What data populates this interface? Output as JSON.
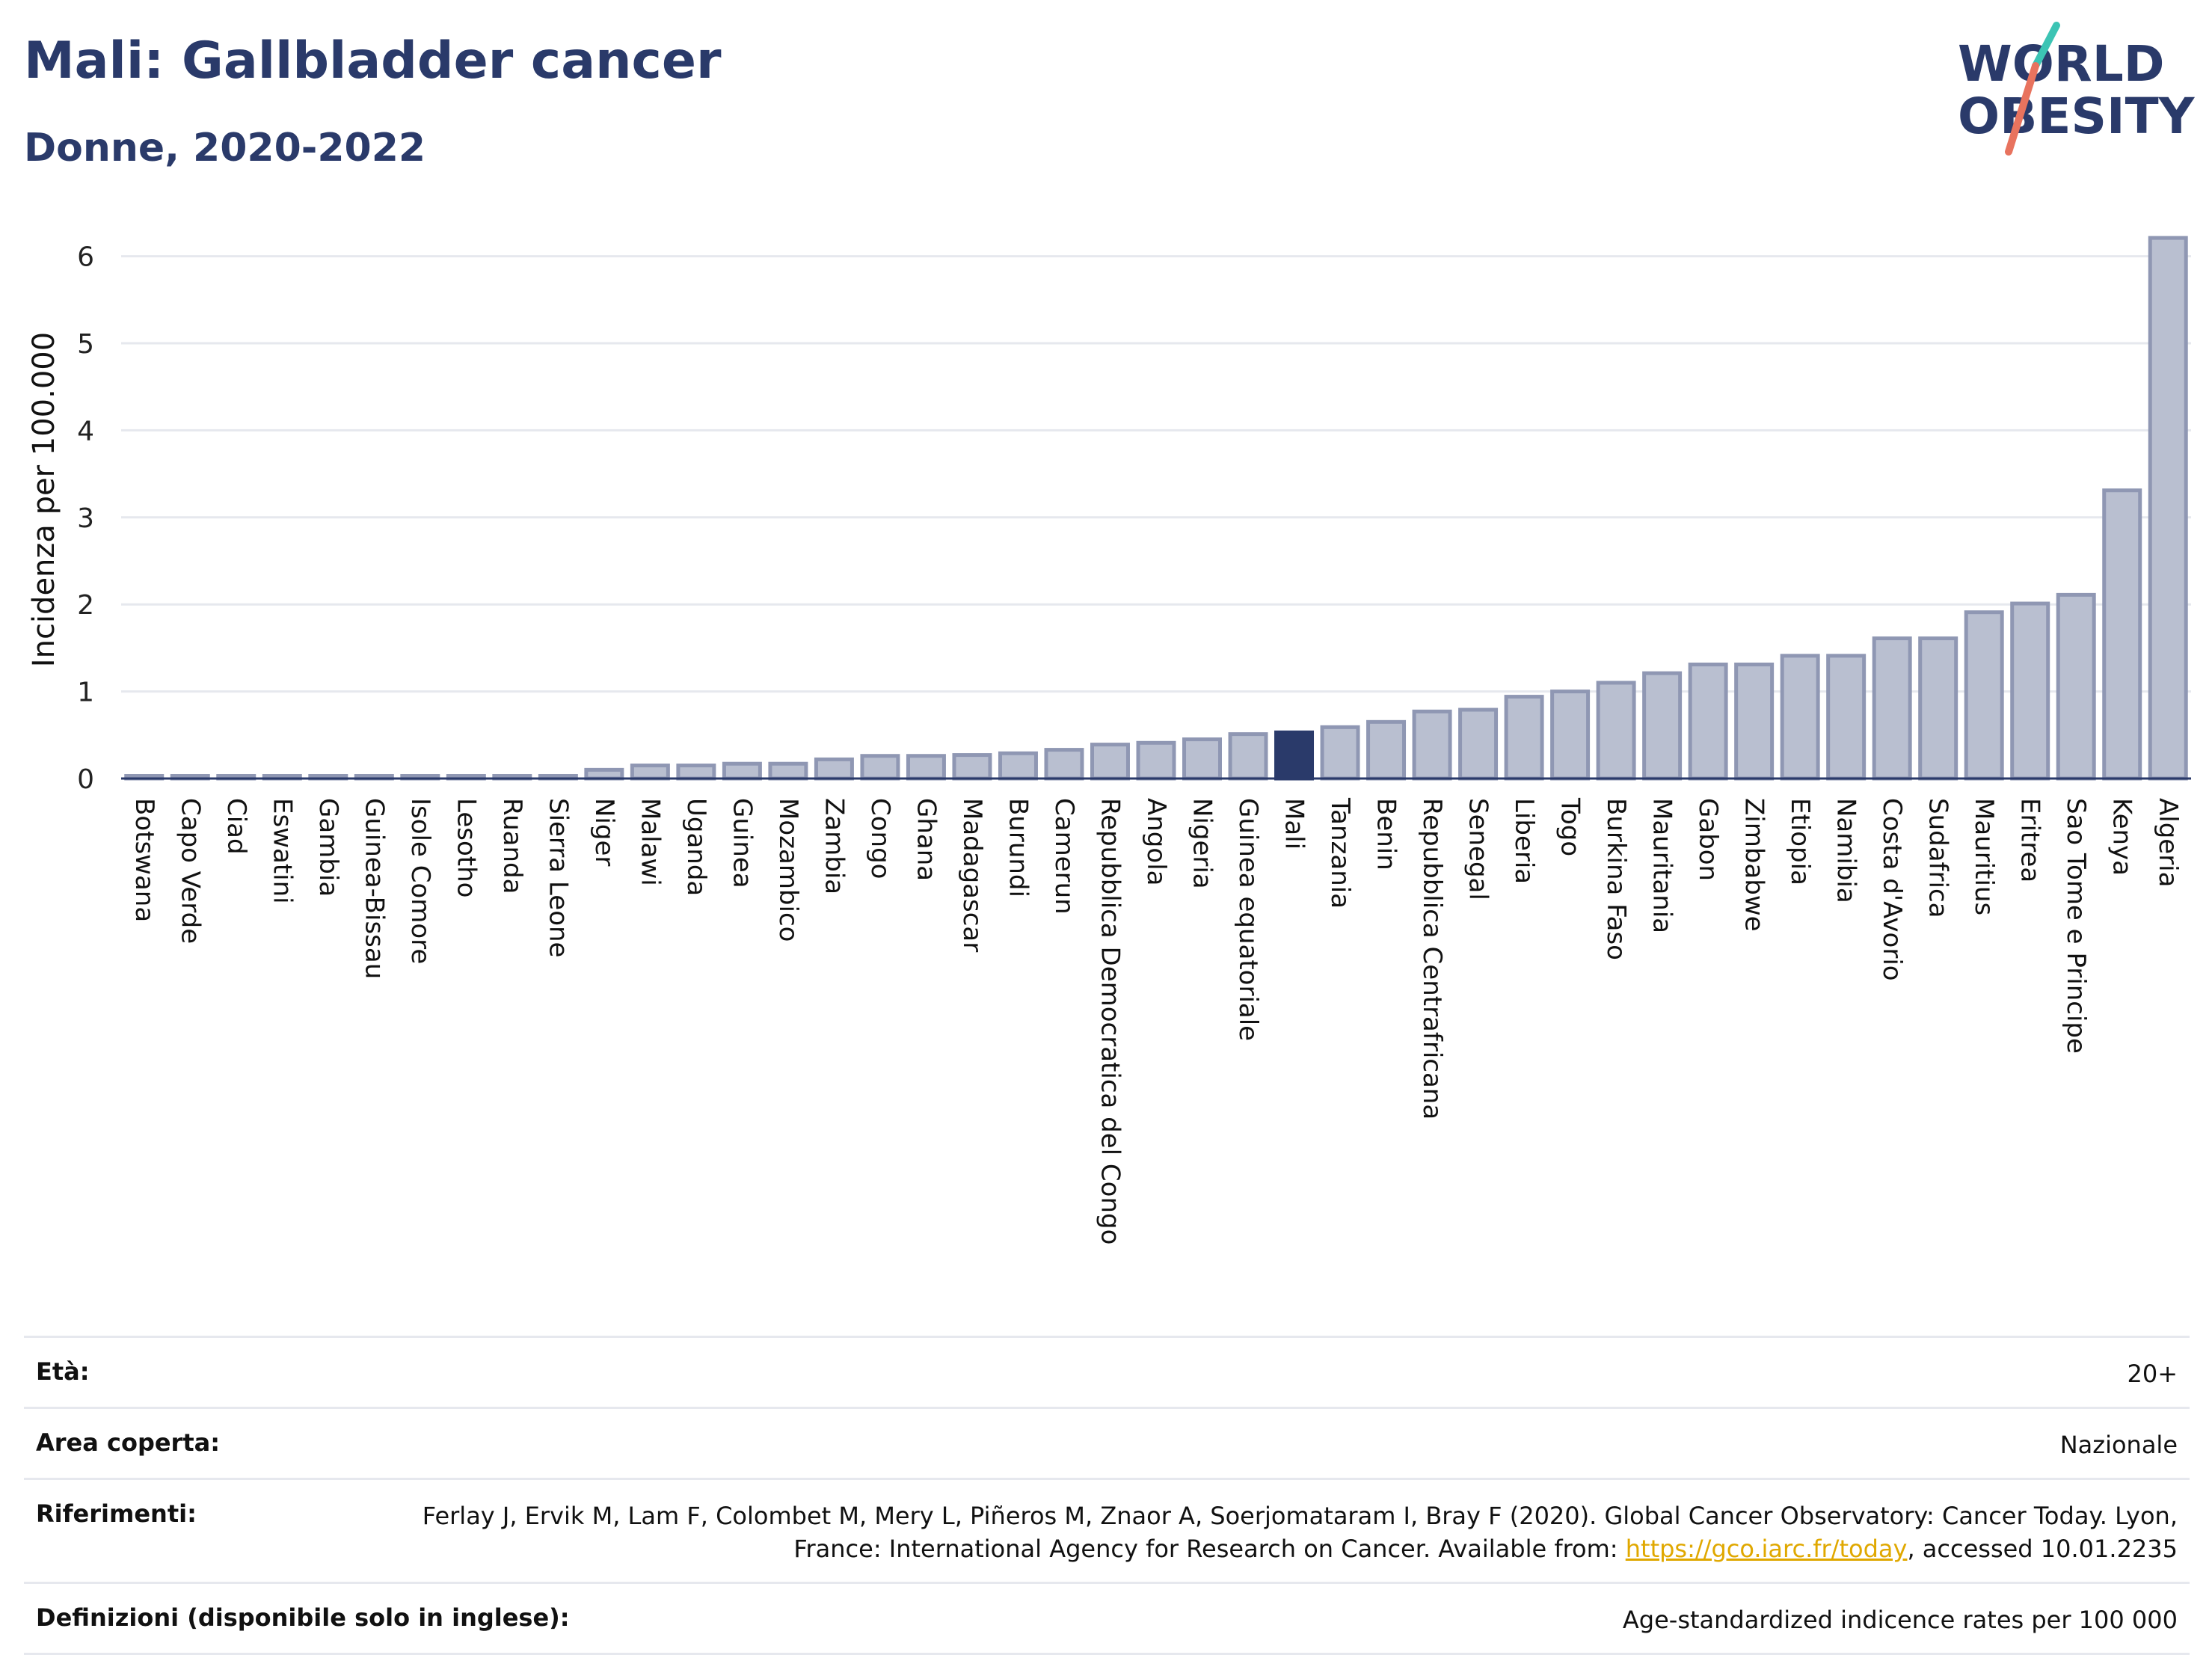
{
  "header": {
    "title": "Mali: Gallbladder cancer",
    "subtitle": "Donne, 2020-2022",
    "logo_line1": "WORLD",
    "logo_line2": "OBESITY"
  },
  "colors": {
    "bar": "#b9bfd0",
    "bar_border": "#8f97b3",
    "highlight": "#2a3a6a",
    "grid": "#e6e8ee",
    "logo_text": "#2a3a6a",
    "logo_accent_1": "#3cc4b4",
    "logo_accent_2": "#e8735e"
  },
  "chart_data": {
    "type": "bar",
    "title": "Mali: Gallbladder cancer",
    "subtitle": "Donne, 2020-2022",
    "ylabel": "Incidenza per 100.000",
    "ylim": [
      0,
      6.4
    ],
    "yticks": [
      "0",
      "1",
      "2",
      "3",
      "4",
      "5",
      "6"
    ],
    "grid": true,
    "highlight": "Mali",
    "categories": [
      "Botswana",
      "Capo Verde",
      "Ciad",
      "Eswatini",
      "Gambia",
      "Guinea-Bissau",
      "Isole Comore",
      "Lesotho",
      "Ruanda",
      "Sierra Leone",
      "Niger",
      "Malawi",
      "Uganda",
      "Guinea",
      "Mozambico",
      "Zambia",
      "Congo",
      "Ghana",
      "Madagascar",
      "Burundi",
      "Camerun",
      "Repubblica Democratica del Congo",
      "Angola",
      "Nigeria",
      "Guinea equatoriale",
      "Mali",
      "Tanzania",
      "Benin",
      "Repubblica Centrafricana",
      "Senegal",
      "Liberia",
      "Togo",
      "Burkina Faso",
      "Mauritania",
      "Gabon",
      "Zimbabwe",
      "Etiopia",
      "Namibia",
      "Costa d'Avorio",
      "Sudafrica",
      "Mauritius",
      "Eritrea",
      "Sao Tome e Principe",
      "Kenya",
      "Algeria"
    ],
    "values": [
      0.03,
      0.03,
      0.03,
      0.03,
      0.03,
      0.03,
      0.03,
      0.03,
      0.03,
      0.03,
      0.1,
      0.15,
      0.15,
      0.17,
      0.17,
      0.22,
      0.26,
      0.26,
      0.27,
      0.29,
      0.33,
      0.39,
      0.41,
      0.45,
      0.51,
      0.53,
      0.59,
      0.65,
      0.77,
      0.79,
      0.94,
      1.0,
      1.1,
      1.21,
      1.31,
      1.31,
      1.41,
      1.41,
      1.61,
      1.61,
      1.91,
      2.01,
      2.11,
      3.31,
      6.21
    ]
  },
  "meta": {
    "age_label": "Età:",
    "age_value": "20+",
    "area_label": "Area coperta:",
    "area_value": "Nazionale",
    "ref_label": "Riferimenti:",
    "ref_text": "Ferlay J, Ervik M, Lam F, Colombet M, Mery L, Piñeros M, Znaor A, Soerjomataram I, Bray F (2020). Global Cancer Observatory: Cancer Today. Lyon, France: International Agency for Research on Cancer. Available from:",
    "ref_link": "https://gco.iarc.fr/today",
    "ref_suffix": ", accessed 10.01.2235",
    "def_label": "Definizioni (disponibile solo in inglese):",
    "def_value": "Age-standardized indicence rates per 100 000"
  }
}
